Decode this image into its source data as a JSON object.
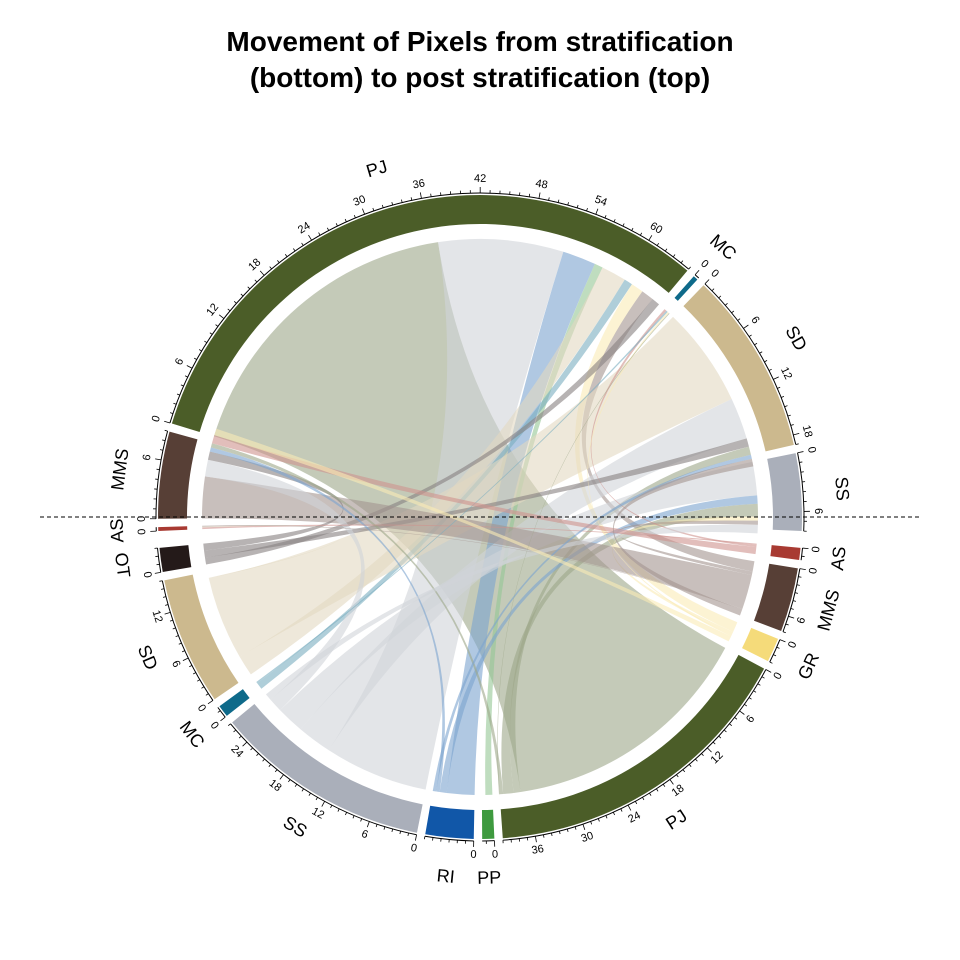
{
  "title_lines": [
    "Movement of Pixels from stratification",
    "(bottom) to post stratification (top)"
  ],
  "chart_data": {
    "type": "chord",
    "title": "Movement of Pixels from stratification (bottom) to post stratification (top)",
    "top_sectors": [
      {
        "id": "t_AS",
        "label": "AS",
        "total": 0.4,
        "color": "#A83A32",
        "ticks": [
          0
        ]
      },
      {
        "id": "t_MMS",
        "label": "MMS",
        "total": 9,
        "color": "#573F36",
        "ticks": [
          0,
          6
        ]
      },
      {
        "id": "t_PJ",
        "label": "PJ",
        "total": 65,
        "color": "#4B5D28",
        "ticks": [
          0,
          6,
          12,
          18,
          24,
          30,
          36,
          42,
          48,
          54,
          60
        ]
      },
      {
        "id": "t_MC",
        "label": "MC",
        "total": 0.5,
        "color": "#0E6A8A",
        "ticks": [
          0
        ]
      },
      {
        "id": "t_SD",
        "label": "SD",
        "total": 19,
        "color": "#CCB98E",
        "ticks": [
          0,
          6,
          12,
          18
        ]
      },
      {
        "id": "t_SS",
        "label": "SS",
        "total": 8,
        "color": "#AAAFBA",
        "ticks": [
          0,
          6
        ]
      }
    ],
    "bottom_sectors": [
      {
        "id": "b_AS",
        "label": "AS",
        "total": 1.5,
        "color": "#A83A32",
        "ticks": [
          0
        ]
      },
      {
        "id": "b_MMS",
        "label": "MMS",
        "total": 8,
        "color": "#573F36",
        "ticks": [
          0,
          6
        ]
      },
      {
        "id": "b_GR",
        "label": "GR",
        "total": 3,
        "color": "#F5DB7A",
        "ticks": [
          0
        ]
      },
      {
        "id": "b_PJ",
        "label": "PJ",
        "total": 40,
        "color": "#4B5D28",
        "ticks": [
          0,
          6,
          12,
          18,
          24,
          30,
          36
        ]
      },
      {
        "id": "b_PP",
        "label": "PP",
        "total": 1.5,
        "color": "#3E9A3F",
        "ticks": [
          0
        ]
      },
      {
        "id": "b_RI",
        "label": "RI",
        "total": 6,
        "color": "#1157A8",
        "ticks": [
          0
        ]
      },
      {
        "id": "b_SS",
        "label": "SS",
        "total": 27,
        "color": "#AAAFBA",
        "ticks": [
          0,
          6,
          12,
          18,
          24
        ]
      },
      {
        "id": "b_MC",
        "label": "MC",
        "total": 1.5,
        "color": "#0E6A8A",
        "ticks": [
          0
        ]
      },
      {
        "id": "b_SD",
        "label": "SD",
        "total": 16,
        "color": "#CCB98E",
        "ticks": [
          0,
          6,
          12
        ]
      },
      {
        "id": "b_OT",
        "label": "OT",
        "total": 3,
        "color": "#241A19",
        "ticks": [
          0
        ]
      }
    ],
    "flows": [
      {
        "from": "b_PJ",
        "to": "t_PJ",
        "value": 37
      },
      {
        "from": "b_SS",
        "to": "t_PJ",
        "value": 15
      },
      {
        "from": "b_RI",
        "to": "t_PJ",
        "value": 4
      },
      {
        "from": "b_PP",
        "to": "t_PJ",
        "value": 1
      },
      {
        "from": "b_SD",
        "to": "t_PJ",
        "value": 3
      },
      {
        "from": "b_MC",
        "to": "t_PJ",
        "value": 1
      },
      {
        "from": "b_GR",
        "to": "t_PJ",
        "value": 1.5
      },
      {
        "from": "b_MMS",
        "to": "t_PJ",
        "value": 1.5
      },
      {
        "from": "b_OT",
        "to": "t_PJ",
        "value": 1
      },
      {
        "from": "b_SD",
        "to": "t_SD",
        "value": 12
      },
      {
        "from": "b_SS",
        "to": "t_SD",
        "value": 5
      },
      {
        "from": "b_OT",
        "to": "t_SD",
        "value": 1
      },
      {
        "from": "b_PJ",
        "to": "t_SD",
        "value": 1
      },
      {
        "from": "b_SS",
        "to": "t_SS",
        "value": 4
      },
      {
        "from": "b_RI",
        "to": "t_SS",
        "value": 1
      },
      {
        "from": "b_PJ",
        "to": "t_SS",
        "value": 1.5
      },
      {
        "from": "b_GR",
        "to": "t_SS",
        "value": 0.5
      },
      {
        "from": "b_MMS",
        "to": "t_SS",
        "value": 0.5
      },
      {
        "from": "b_MMS",
        "to": "t_MMS",
        "value": 5
      },
      {
        "from": "b_SS",
        "to": "t_MMS",
        "value": 2
      },
      {
        "from": "b_OT",
        "to": "t_MMS",
        "value": 1
      },
      {
        "from": "b_RI",
        "to": "t_MMS",
        "value": 0.5
      },
      {
        "from": "b_PJ",
        "to": "t_MMS",
        "value": 0.5
      },
      {
        "from": "b_AS",
        "to": "t_AS",
        "value": 0.2
      },
      {
        "from": "b_SD",
        "to": "t_AS",
        "value": 0.1
      },
      {
        "from": "b_AS",
        "to": "t_MC",
        "value": 0.3
      },
      {
        "from": "b_MC",
        "to": "t_MC",
        "value": 0.2
      },
      {
        "from": "b_MMS",
        "to": "t_AS",
        "value": 0.1
      },
      {
        "from": "b_GR",
        "to": "t_MC",
        "value": 0.2
      },
      {
        "from": "b_SS",
        "to": "t_SS",
        "value": 1
      },
      {
        "from": "b_RI",
        "to": "t_SD",
        "value": 0.5
      },
      {
        "from": "b_AS",
        "to": "t_MMS",
        "value": 1
      },
      {
        "from": "b_MMS",
        "to": "t_SD",
        "value": 0.9
      },
      {
        "from": "b_GR",
        "to": "t_MMS",
        "value": 0.8
      },
      {
        "from": "b_PJ",
        "to": "t_MC",
        "value": 0.1
      }
    ]
  }
}
